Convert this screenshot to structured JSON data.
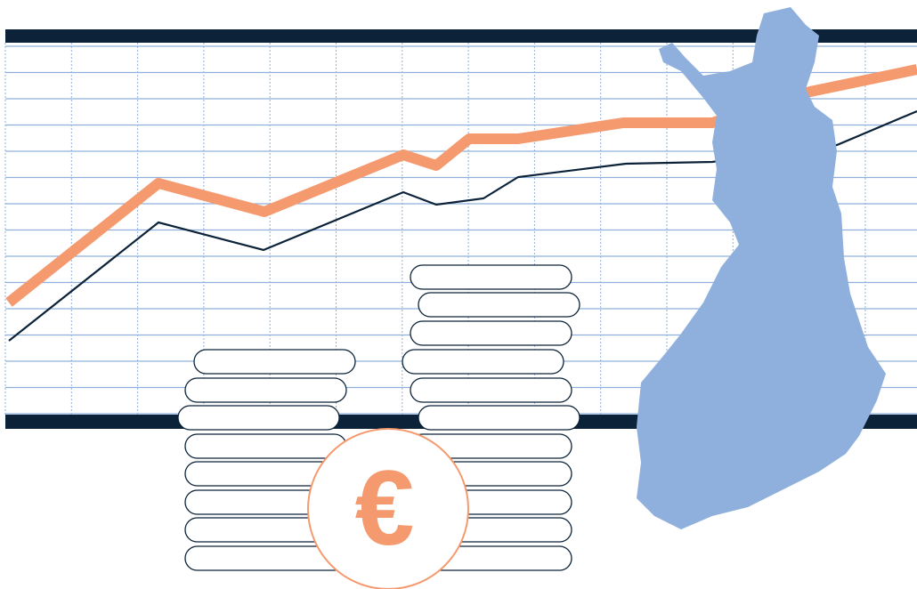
{
  "symbol": "€"
}
